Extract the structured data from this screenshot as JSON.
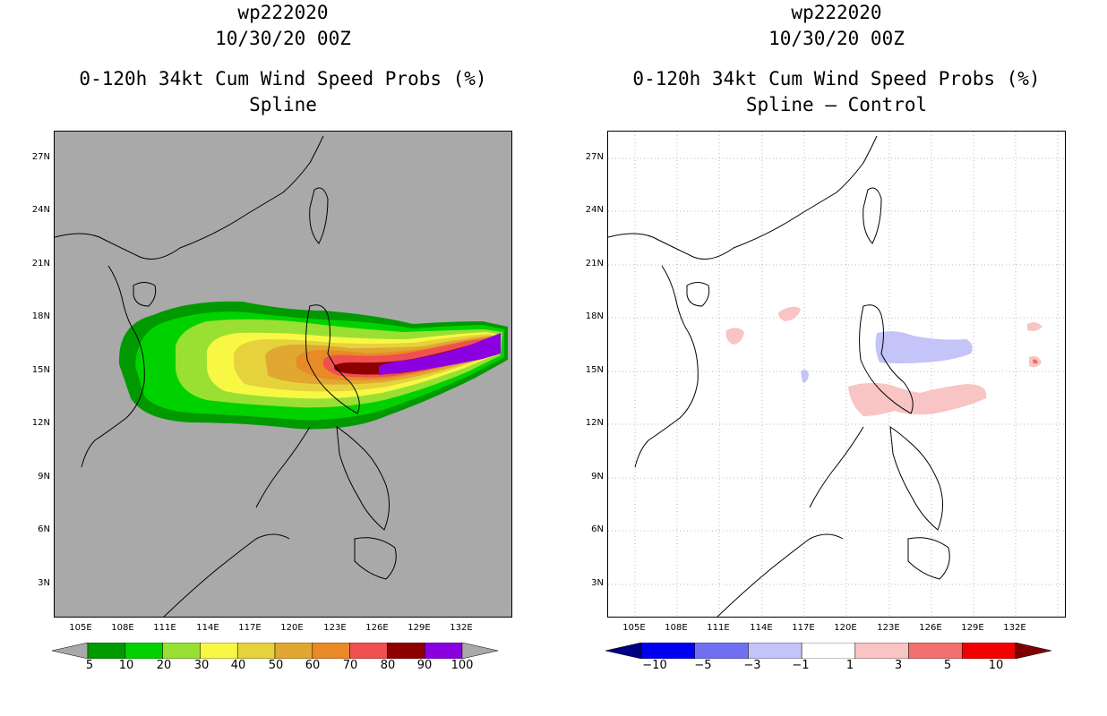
{
  "left_panel": {
    "storm_id": "wp222020",
    "datetime": "10/30/20 00Z",
    "product": "0-120h 34kt Cum Wind Speed Probs (%)",
    "subtitle": "Spline",
    "colorbar": {
      "labels": [
        "5",
        "10",
        "20",
        "30",
        "40",
        "50",
        "60",
        "70",
        "80",
        "90",
        "100"
      ],
      "colors": [
        "#009a00",
        "#00d200",
        "#99e033",
        "#f8f844",
        "#e6d23c",
        "#e0a830",
        "#e88a28",
        "#f05050",
        "#8c0000",
        "#8a00e0"
      ]
    }
  },
  "right_panel": {
    "storm_id": "wp222020",
    "datetime": "10/30/20 00Z",
    "product": "0-120h 34kt Cum Wind Speed Probs (%)",
    "subtitle": "Spline – Control",
    "colorbar": {
      "labels": [
        "−10",
        "−5",
        "−3",
        "−1",
        "1",
        "3",
        "5",
        "10"
      ],
      "colors": [
        "#000080",
        "#0000f0",
        "#7070f0",
        "#c4c4f8",
        "#ffffff",
        "#f8c4c4",
        "#f07070",
        "#f00000"
      ]
    }
  },
  "axes": {
    "lat_labels": [
      "27N",
      "24N",
      "21N",
      "18N",
      "15N",
      "12N",
      "9N",
      "6N",
      "3N"
    ],
    "lon_labels": [
      "105E",
      "108E",
      "111E",
      "114E",
      "117E",
      "120E",
      "123E",
      "126E",
      "129E",
      "132E"
    ]
  }
}
